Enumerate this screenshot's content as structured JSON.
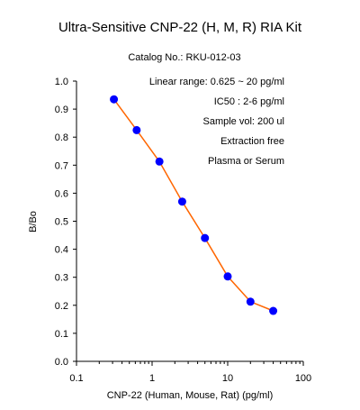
{
  "chart_data": {
    "type": "line",
    "title": "Ultra-Sensitive CNP-22 (H, M, R) RIA Kit",
    "subtitle": "Catalog No.: RKU-012-03",
    "xlabel": "CNP-22 (Human, Mouse, Rat) (pg/ml)",
    "ylabel": "B/Bo",
    "xscale": "log",
    "xlim": [
      0.1,
      100
    ],
    "ylim": [
      0.0,
      1.0
    ],
    "x_ticks": [
      "0.1",
      "1",
      "10",
      "100"
    ],
    "y_ticks": [
      "0.0",
      "0.1",
      "0.2",
      "0.3",
      "0.4",
      "0.5",
      "0.6",
      "0.7",
      "0.8",
      "0.9",
      "1.0"
    ],
    "grid": false,
    "annotations": [
      "Linear range: 0.625 ~ 20 pg/ml",
      "IC50 : 2-6 pg/ml",
      "Sample vol: 200 ul",
      "Extraction free",
      "Plasma or Serum"
    ],
    "series": [
      {
        "x": [
          0.3125,
          0.625,
          1.25,
          2.5,
          5,
          10,
          20,
          40
        ],
        "y": [
          0.935,
          0.825,
          0.713,
          0.57,
          0.44,
          0.303,
          0.213,
          0.18
        ],
        "line_color": "#ff6600",
        "marker_color": "#0000ff"
      }
    ]
  }
}
